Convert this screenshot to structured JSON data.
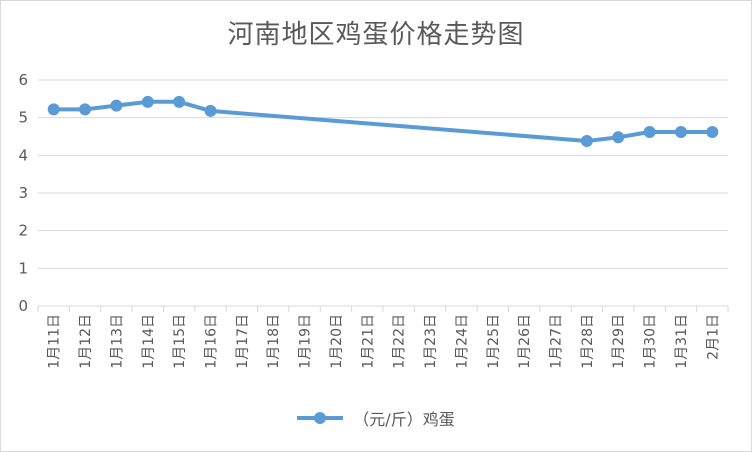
{
  "chart_data": {
    "type": "line",
    "title": "河南地区鸡蛋价格走势图",
    "xlabel": "",
    "ylabel": "",
    "categories": [
      "1月11日",
      "1月12日",
      "1月13日",
      "1月14日",
      "1月15日",
      "1月16日",
      "1月17日",
      "1月18日",
      "1月19日",
      "1月20日",
      "1月21日",
      "1月22日",
      "1月23日",
      "1月24日",
      "1月25日",
      "1月26日",
      "1月27日",
      "1月28日",
      "1月29日",
      "1月30日",
      "1月31日",
      "2月1日"
    ],
    "yticks": [
      "0",
      "1",
      "2",
      "3",
      "4",
      "5",
      "6"
    ],
    "ylim": [
      0,
      6
    ],
    "grid": true,
    "legend_position": "bottom",
    "series": [
      {
        "name": "（元/斤）鸡蛋",
        "color": "#5b9bd5",
        "values": [
          5.22,
          5.22,
          5.32,
          5.42,
          5.42,
          5.18,
          null,
          null,
          null,
          null,
          null,
          null,
          null,
          null,
          null,
          null,
          null,
          4.38,
          4.48,
          4.62,
          4.62,
          4.62
        ]
      }
    ]
  }
}
